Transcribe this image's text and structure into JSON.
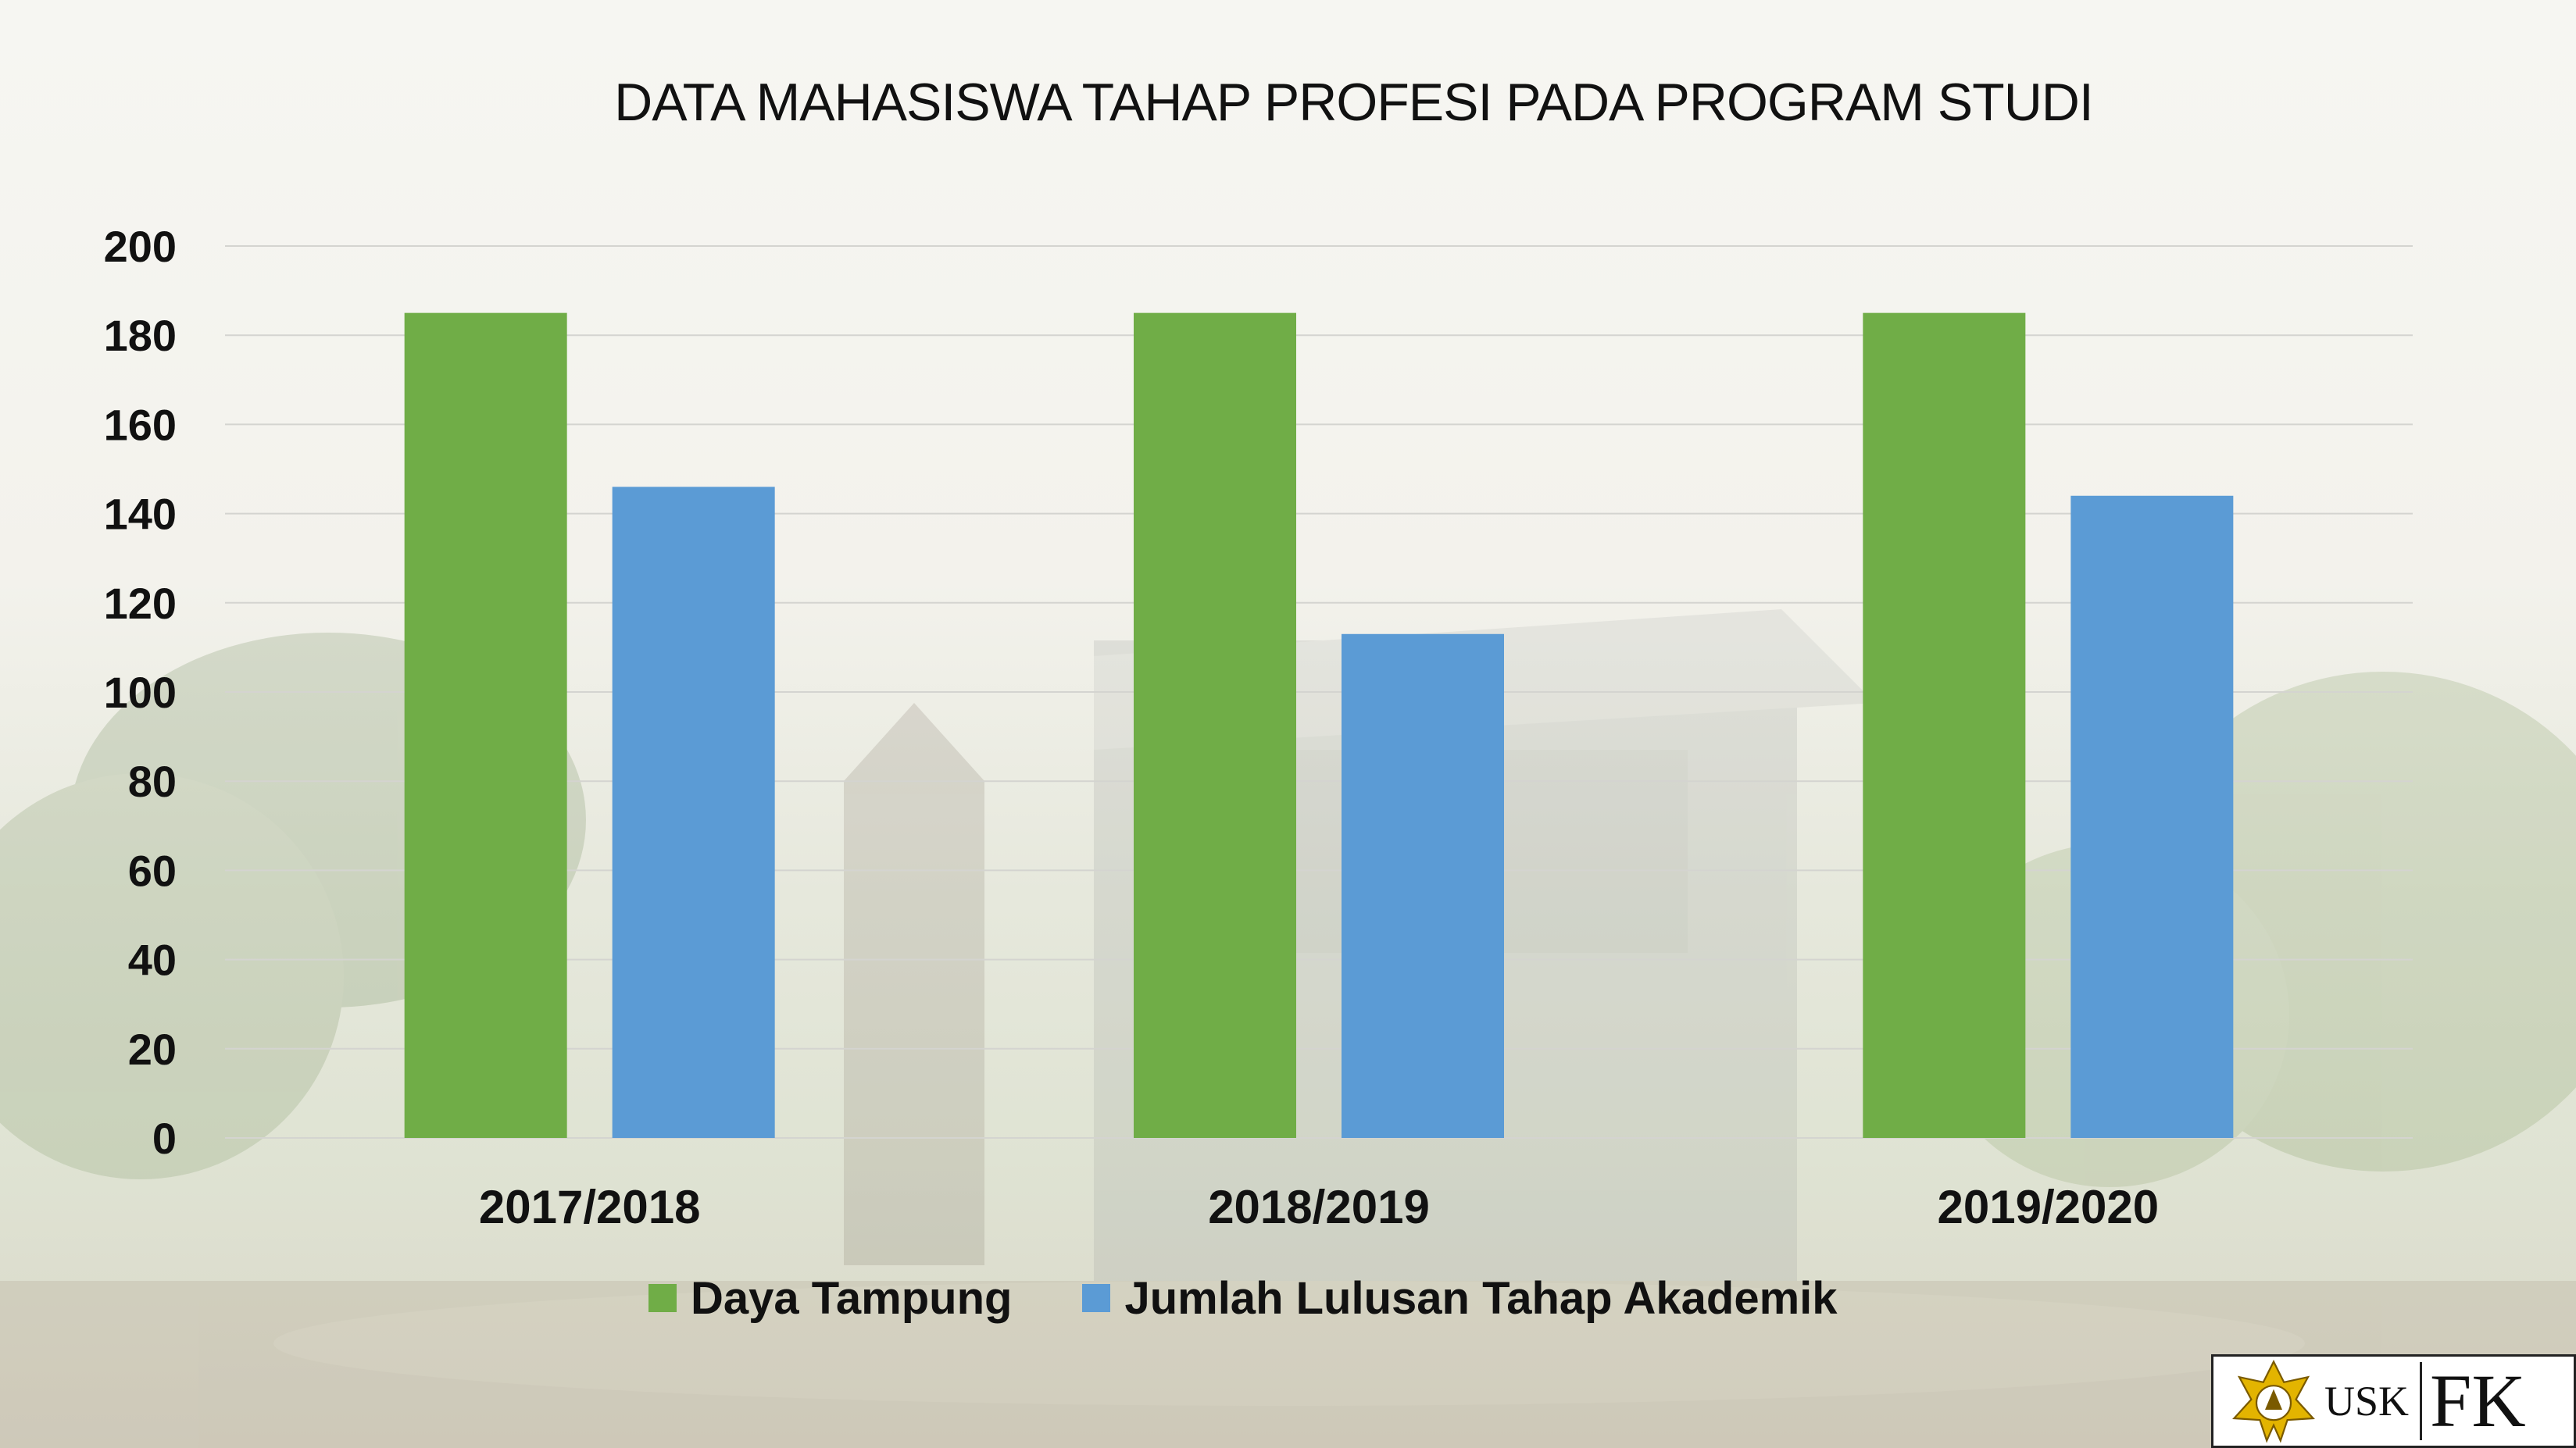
{
  "slide": {
    "logo": {
      "usk_label": "USK",
      "fk_label": "FK",
      "emblem_icon": "usk-emblem-icon"
    }
  },
  "chart_data": {
    "type": "bar",
    "title": "DATA MAHASISWA TAHAP PROFESI PADA PROGRAM STUDI",
    "categories": [
      "2017/2018",
      "2018/2019",
      "2019/2020"
    ],
    "series": [
      {
        "name": "Daya Tampung",
        "color": "#70ad47",
        "values": [
          185,
          185,
          185
        ]
      },
      {
        "name": "Jumlah Lulusan Tahap Akademik",
        "color": "#5b9bd5",
        "values": [
          146,
          113,
          144
        ]
      }
    ],
    "ylim": [
      0,
      200
    ],
    "yticks": [
      "0",
      "20",
      "40",
      "60",
      "80",
      "100",
      "120",
      "140",
      "160",
      "180",
      "200"
    ],
    "grid": true,
    "legend": "bottom",
    "xlabel": "",
    "ylabel": ""
  }
}
